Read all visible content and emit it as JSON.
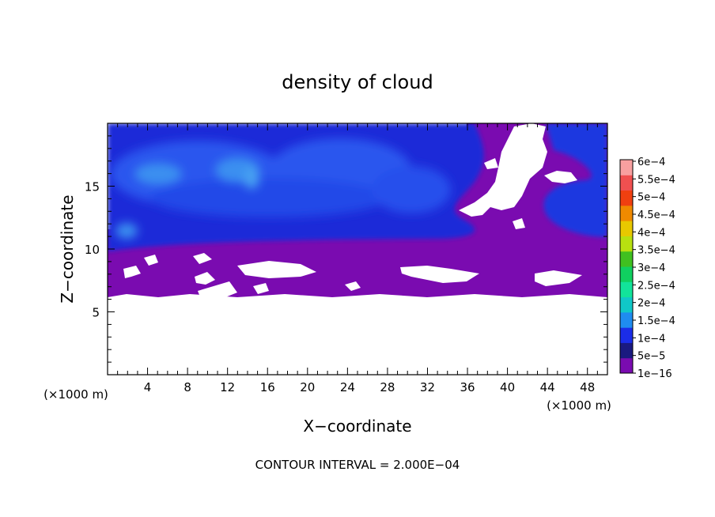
{
  "chart_data": {
    "type": "heatmap",
    "title": "density of cloud",
    "xlabel": "X−coordinate",
    "ylabel": "Z−coordinate",
    "x_unit_left": "(×1000 m)",
    "x_unit_right": "(×1000 m)",
    "footer": "CONTOUR INTERVAL = 2.000E−04",
    "xlim": [
      0,
      50
    ],
    "ylim": [
      0,
      20
    ],
    "x_ticks": [
      "4",
      "8",
      "12",
      "16",
      "20",
      "24",
      "28",
      "32",
      "36",
      "40",
      "44",
      "48"
    ],
    "x_tick_values": [
      4,
      8,
      12,
      16,
      20,
      24,
      28,
      32,
      36,
      40,
      44,
      48
    ],
    "y_ticks": [
      "5",
      "10",
      "15"
    ],
    "y_tick_values": [
      5,
      10,
      15
    ],
    "colorbar": {
      "labels": [
        "1e−16",
        "5e−5",
        "1e−4",
        "1.5e−4",
        "2e−4",
        "2.5e−4",
        "3e−4",
        "3.5e−4",
        "4e−4",
        "4.5e−4",
        "5e−4",
        "5.5e−4",
        "6e−4"
      ],
      "colors": [
        "#7a0bb0",
        "#1a1a80",
        "#1b2de8",
        "#1f8cf0",
        "#10c8c8",
        "#12e49a",
        "#10d060",
        "#40c020",
        "#b8e010",
        "#e8c800",
        "#f08a00",
        "#f04010",
        "#f05050",
        "#f8a0a0"
      ]
    },
    "colors": {
      "purple": "#7a0bb0",
      "deep_blue": "#1a2ad8",
      "mid_blue": "#2a56ee",
      "light_blue": "#3a8ff0",
      "empty": "#ffffff"
    }
  }
}
